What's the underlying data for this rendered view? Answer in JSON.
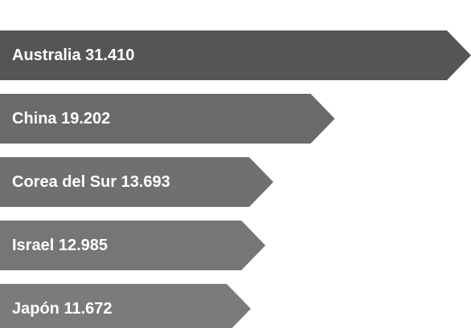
{
  "chart_data": {
    "type": "bar",
    "categories": [
      "Australia",
      "China",
      "Corea del Sur",
      "Israel",
      "Japón"
    ],
    "values": [
      31410,
      19202,
      13693,
      12985,
      11672
    ],
    "value_labels": [
      "31.410",
      "19.202",
      "13.693",
      "12.985",
      "11.672"
    ],
    "colors": [
      "#555558",
      "#6a6a6c",
      "#707071",
      "#767677",
      "#7b7b7c"
    ]
  }
}
